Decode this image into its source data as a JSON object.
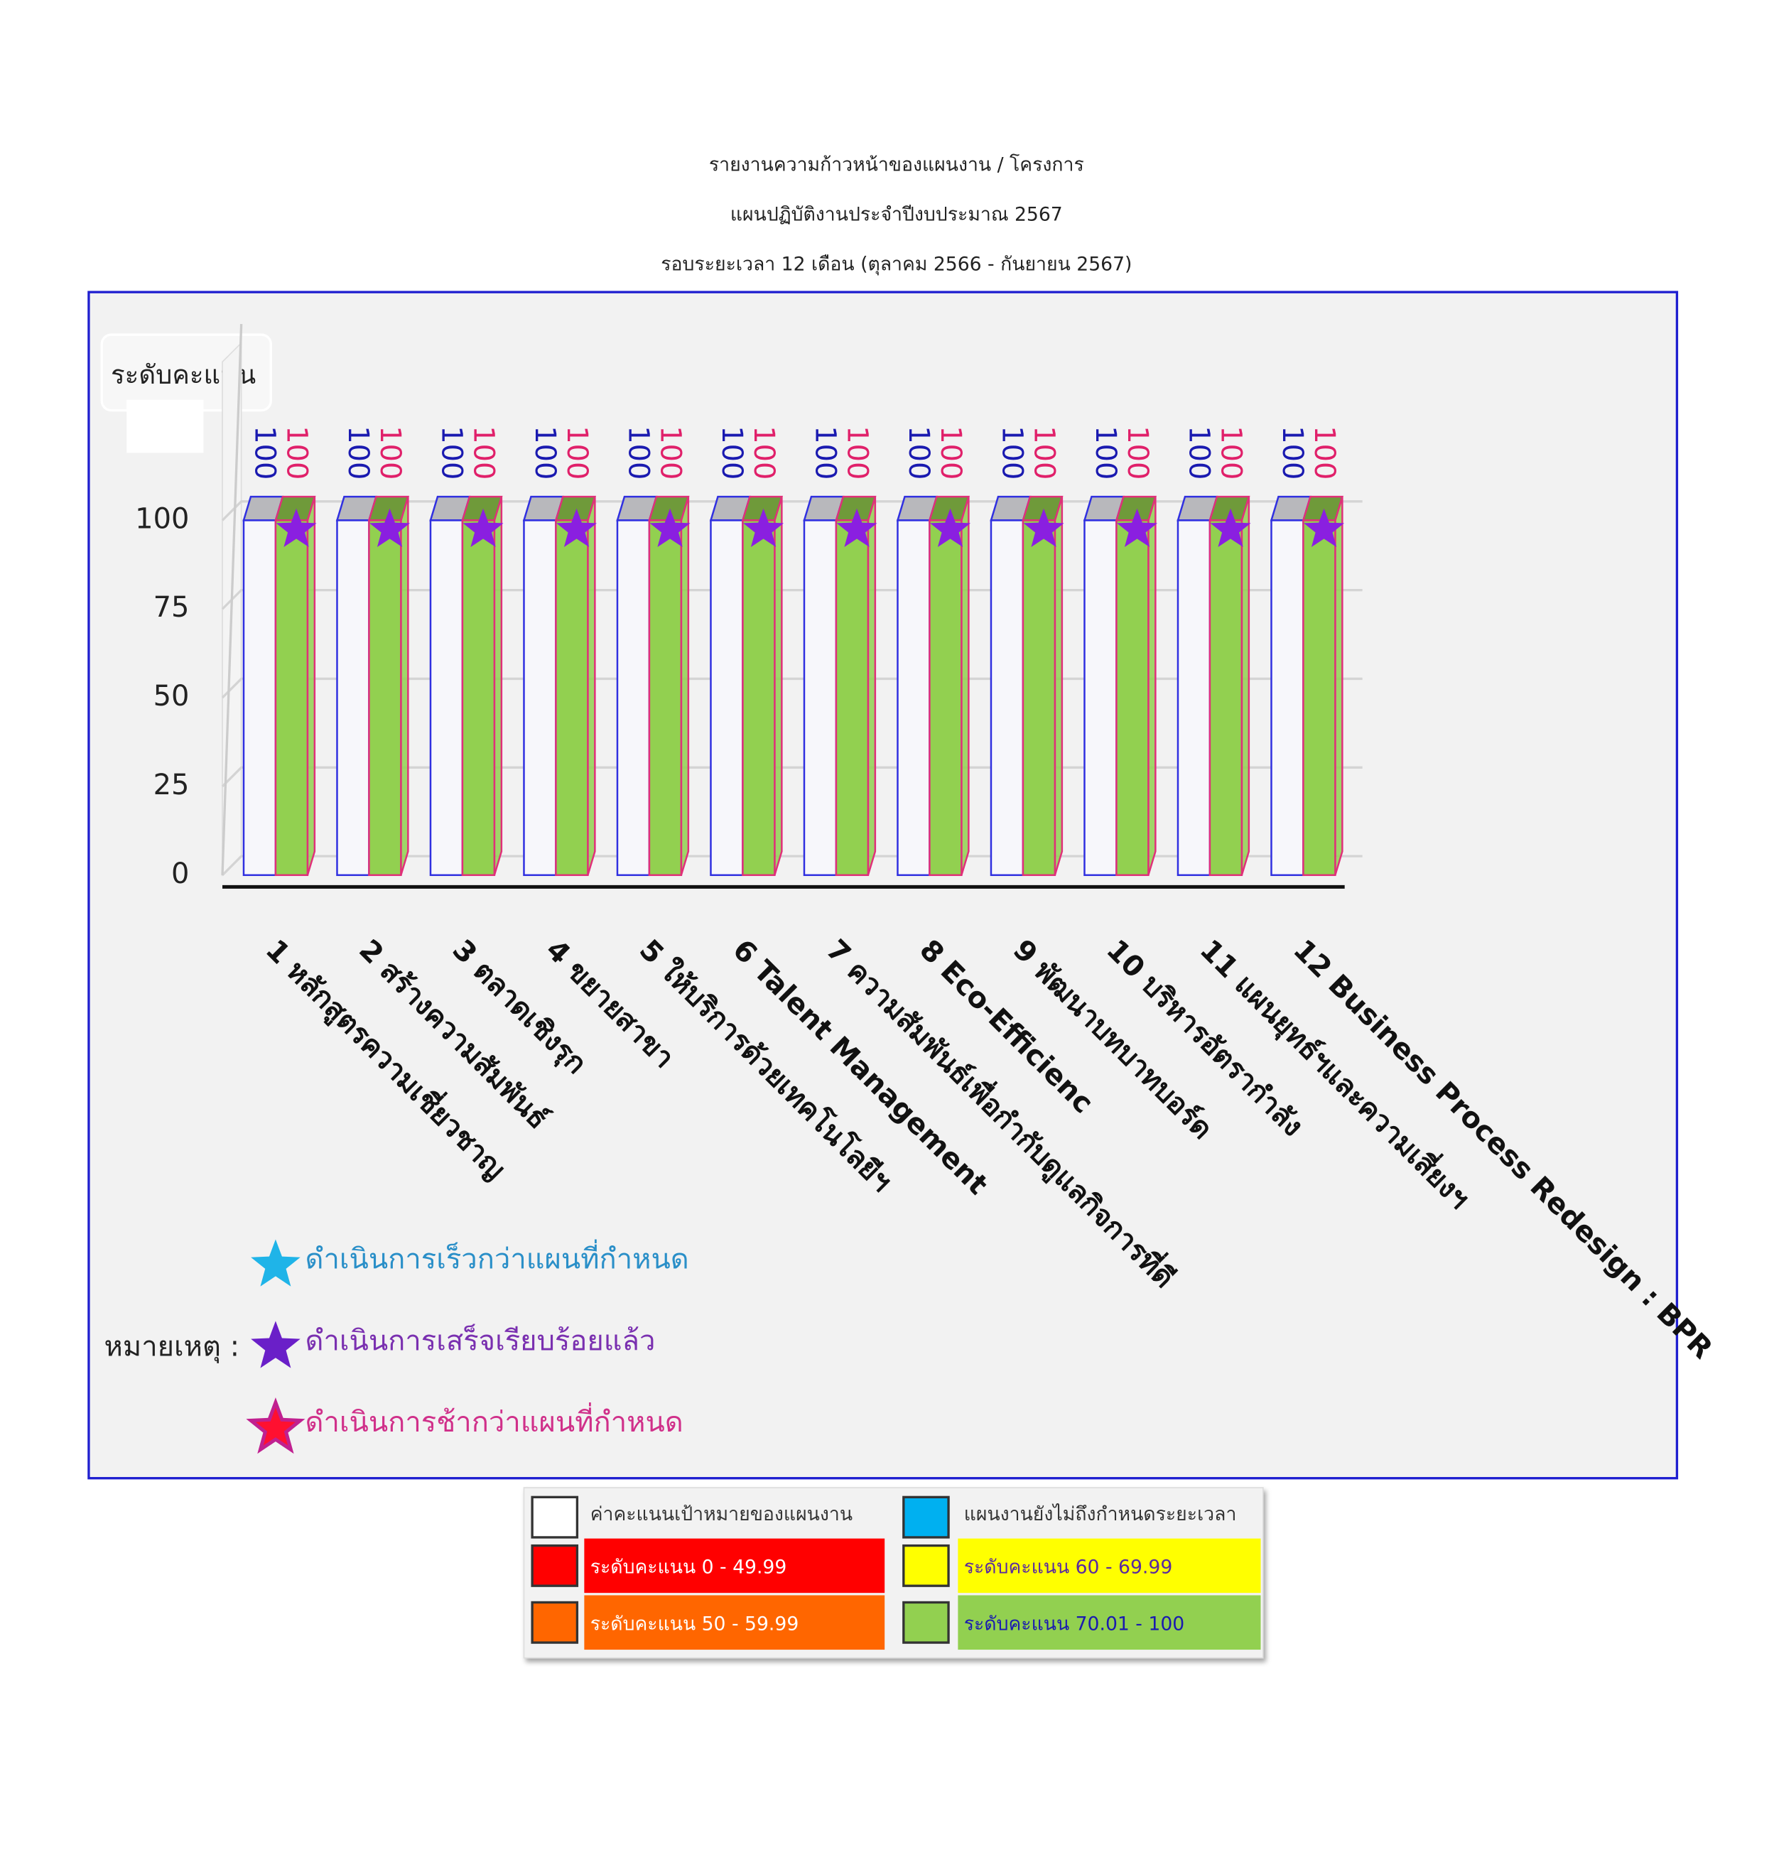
{
  "chart_data": {
    "type": "bar",
    "title_lines": [
      "รายงานความก้าวหน้าของแผนงาน / โครงการ",
      "แผนปฏิบัติงานประจำปีงบประมาณ 2567",
      "รอบระยะเวลา 12 เดือน  (ตุลาคม 2566 - กันยายน 2567)"
    ],
    "y_axis_label": "ระดับคะแนน",
    "categories": [
      "1 หลักสูตรความเชี่ยวชาญ",
      "2 สร้างความสัมพันธ์",
      "3 ตลาดเชิงรุก",
      "4 ขยายสาขา",
      "5 ให้บริการด้วยเทคโนโลยีฯ",
      "6 Talent Management",
      "7 ความสัมพันธ์เพื่อกำกับดูแลกิจการที่ดี",
      "8 Eco-Efficienc",
      "9 พัฒนาบทบาทบอร์ด",
      "10 บริหารอัตรากำลัง",
      "11 แผนยุทธ์ฯและความเสี่ยงฯ",
      "12 Business Process Redesign : BPR"
    ],
    "series": [
      {
        "color": "#f7f7fb",
        "edge_color": "#3030e0",
        "label_color": "#1a1ab0",
        "values": [
          100,
          100,
          100,
          100,
          100,
          100,
          100,
          100,
          100,
          100,
          100,
          100
        ]
      },
      {
        "color": "#92d050",
        "edge_color": "#e0307a",
        "label_color": "#e0206a",
        "values": [
          100,
          100,
          100,
          100,
          100,
          100,
          100,
          100,
          100,
          100,
          100,
          100
        ]
      }
    ],
    "ylim": [
      0,
      150
    ],
    "yticks": [
      0,
      25,
      50,
      75,
      100
    ],
    "grid": true,
    "notes": {
      "label": "หมายเหตุ  :",
      "items": [
        {
          "text": "ดำเนินการเร็วกว่าแผนที่กำหนด",
          "color": "#1fb4e8",
          "text_color": "#2a8fc8"
        },
        {
          "text": "ดำเนินการเสร็จเรียบร้อยแล้ว",
          "color": "#6a1fc8",
          "text_color": "#7a30b0"
        },
        {
          "text": "ดำเนินการช้ากว่าแผนที่กำหนด",
          "color": "#ff1030",
          "text_color": "#d0308a"
        }
      ]
    },
    "status_star_color": "#8a1fe0",
    "color_legend": [
      {
        "text": "ค่าคะแนนเป้าหมายของแผนงาน",
        "color": "#ffffff",
        "text_color": "#333333",
        "highlight": false
      },
      {
        "text": "แผนงานยังไม่ถึงกำหนดระยะเวลา",
        "color": "#00b0f0",
        "text_color": "#333333",
        "highlight": false
      },
      {
        "text": "ระดับคะแนน 0 - 49.99",
        "color": "#ff0000",
        "text_color": "#ffffff",
        "highlight": true
      },
      {
        "text": "ระดับคะแนน 60 - 69.99",
        "color": "#ffff00",
        "text_color": "#5a2aa0",
        "highlight": true
      },
      {
        "text": "ระดับคะแนน 50 - 59.99",
        "color": "#ff6600",
        "text_color": "#ffffff",
        "highlight": true
      },
      {
        "text": "ระดับคะแนน 70.01 - 100",
        "color": "#92d050",
        "text_color": "#1a1ab0",
        "highlight": true
      }
    ]
  }
}
